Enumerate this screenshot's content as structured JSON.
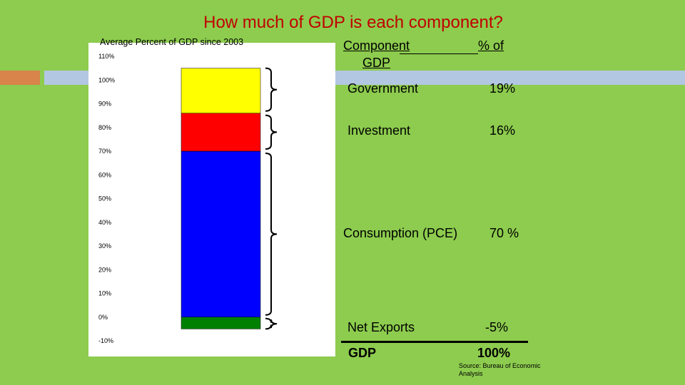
{
  "slide": {
    "title": "How much of GDP is each component?",
    "source": "Source: Bureau of Economic Analysis"
  },
  "table": {
    "header_component": "Component",
    "header_gdp": "GDP",
    "header_pct": "% of",
    "rows": [
      {
        "label": "Government",
        "value": "19%"
      },
      {
        "label": "Investment",
        "value": "16%"
      },
      {
        "label": "Consumption (PCE)",
        "value": "70 %"
      },
      {
        "label": "Net Exports",
        "value": "-5%"
      }
    ],
    "total_label": "GDP",
    "total_value": "100%"
  },
  "chart_data": {
    "type": "bar",
    "title": "Average Percent of GDP since 2003",
    "stacked": true,
    "ylim": [
      -10,
      110
    ],
    "yticks": [
      "-10%",
      "0%",
      "10%",
      "20%",
      "30%",
      "40%",
      "50%",
      "60%",
      "70%",
      "80%",
      "90%",
      "100%",
      "110%"
    ],
    "grid": false,
    "series": [
      {
        "value": -5,
        "color": "#008000"
      },
      {
        "value": 70,
        "color": "#0000ff"
      },
      {
        "value": 16,
        "color": "#ff0000"
      },
      {
        "value": 19,
        "color": "#ffff00"
      }
    ]
  }
}
